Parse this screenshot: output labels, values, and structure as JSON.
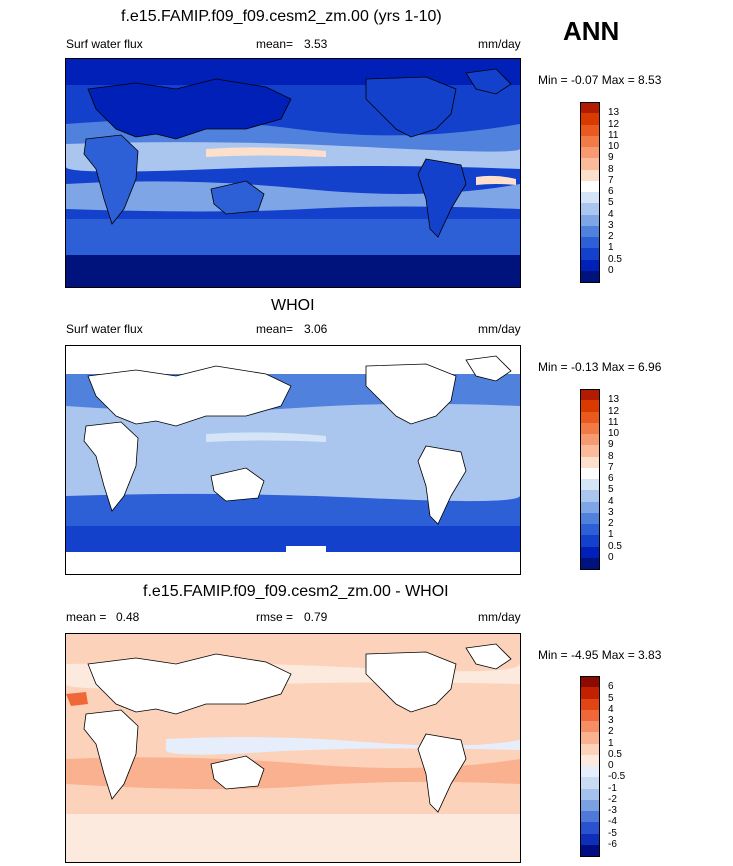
{
  "season": "ANN",
  "panels": [
    {
      "id": "model",
      "title": "f.e15.FAMIP.f09_f09.cesm2_zm.00 (yrs 1-10)",
      "left_label": "Surf water flux",
      "stat_label": "mean=",
      "stat_value": "3.53",
      "units": "mm/day",
      "minmax": "Min =  -0.07 Max =   8.53",
      "colorbar_labels": [
        "13",
        "12",
        "11",
        "10",
        "9",
        "8",
        "7",
        "6",
        "5",
        "4",
        "3",
        "2",
        "1",
        "0.5",
        "0"
      ],
      "colors": [
        "#b31b00",
        "#d93a00",
        "#ea5a1f",
        "#f27a46",
        "#f79a72",
        "#fbbb9b",
        "#fde0cb",
        "#ffffff",
        "#d6e4f7",
        "#aac6ef",
        "#7ea6e6",
        "#5082dd",
        "#2d60d6",
        "#1341cc",
        "#0020b7",
        "#00127c"
      ]
    },
    {
      "id": "obs",
      "title": "WHOI",
      "left_label": "Surf water flux",
      "stat_label": "mean=",
      "stat_value": "3.06",
      "units": "mm/day",
      "minmax": "Min =  -0.13 Max =   6.96",
      "colorbar_labels": [
        "13",
        "12",
        "11",
        "10",
        "9",
        "8",
        "7",
        "6",
        "5",
        "4",
        "3",
        "2",
        "1",
        "0.5",
        "0"
      ],
      "colors": [
        "#b31b00",
        "#d93a00",
        "#ea5a1f",
        "#f27a46",
        "#f79a72",
        "#fbbb9b",
        "#fde0cb",
        "#ffffff",
        "#d6e4f7",
        "#aac6ef",
        "#7ea6e6",
        "#5082dd",
        "#2d60d6",
        "#1341cc",
        "#0020b7",
        "#00127c"
      ]
    },
    {
      "id": "diff",
      "title": "f.e15.FAMIP.f09_f09.cesm2_zm.00 - WHOI",
      "left_label": "mean =",
      "left_value": "0.48",
      "stat_label": "rmse =",
      "stat_value": "0.79",
      "units": "mm/day",
      "minmax": "Min =  -4.95 Max =   3.83",
      "colorbar_labels": [
        "6",
        "5",
        "4",
        "3",
        "2",
        "1",
        "0.5",
        "0",
        "-0.5",
        "-1",
        "-2",
        "-3",
        "-4",
        "-5",
        "-6"
      ],
      "colors": [
        "#8c0b00",
        "#c22000",
        "#e04515",
        "#f0683a",
        "#f68d64",
        "#f9b18f",
        "#fcd2bb",
        "#fdeade",
        "#e6eefb",
        "#c9daf5",
        "#a4c0ec",
        "#7ba0e2",
        "#5078d8",
        "#2a52ce",
        "#0f2fb8",
        "#000e82"
      ]
    }
  ],
  "chart_data": [
    {
      "type": "heatmap",
      "title": "f.e15.FAMIP.f09_f09.cesm2_zm.00 (yrs 1-10)",
      "variable": "Surf water flux",
      "units": "mm/day",
      "mean": 3.53,
      "min": -0.07,
      "max": 8.53,
      "contour_levels": [
        0,
        0.5,
        1,
        2,
        3,
        4,
        5,
        6,
        7,
        8,
        9,
        10,
        11,
        12,
        13
      ]
    },
    {
      "type": "heatmap",
      "title": "WHOI",
      "variable": "Surf water flux",
      "units": "mm/day",
      "mean": 3.06,
      "min": -0.13,
      "max": 6.96,
      "contour_levels": [
        0,
        0.5,
        1,
        2,
        3,
        4,
        5,
        6,
        7,
        8,
        9,
        10,
        11,
        12,
        13
      ]
    },
    {
      "type": "heatmap",
      "title": "f.e15.FAMIP.f09_f09.cesm2_zm.00 - WHOI",
      "units": "mm/day",
      "mean": 0.48,
      "rmse": 0.79,
      "min": -4.95,
      "max": 3.83,
      "contour_levels": [
        -6,
        -5,
        -4,
        -3,
        -2,
        -1,
        -0.5,
        0,
        0.5,
        1,
        2,
        3,
        4,
        5,
        6
      ]
    }
  ]
}
